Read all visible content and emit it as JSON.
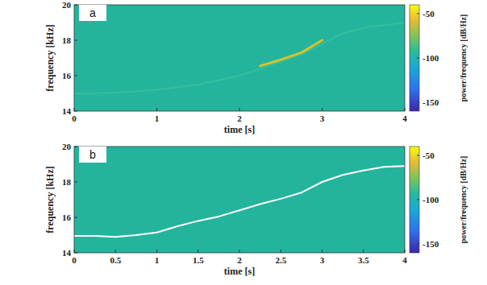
{
  "chart_data": [
    {
      "type": "line",
      "panel_label": "a",
      "xlabel": "time [s]",
      "ylabel": "frequency [kHz]",
      "x": [
        0,
        0.25,
        0.5,
        0.75,
        1,
        1.25,
        1.5,
        1.75,
        2,
        2.25,
        2.5,
        2.75,
        3,
        3.25,
        3.5,
        3.75,
        4
      ],
      "series": [
        {
          "color": "#3fc49a",
          "values": [
            15.0,
            15.0,
            15.05,
            15.1,
            15.2,
            15.35,
            15.5,
            15.75,
            16.0,
            16.4,
            16.8,
            17.2,
            17.8,
            18.4,
            18.7,
            18.85,
            19.0
          ]
        },
        {
          "color": "#d8c22a",
          "values": [
            null,
            null,
            null,
            null,
            null,
            null,
            null,
            null,
            null,
            16.55,
            16.9,
            17.3,
            18.0,
            null,
            null,
            null,
            null
          ]
        }
      ],
      "xlim": [
        0,
        4
      ],
      "xticks": [
        0,
        1,
        2,
        3,
        4
      ],
      "ylim": [
        14,
        20
      ],
      "yticks": [
        14,
        16,
        18,
        20
      ],
      "colorbar": {
        "label": "power/frequency [dB/Hz]",
        "range": [
          -160,
          -40
        ],
        "ticks": [
          -50,
          -100,
          -150
        ]
      }
    },
    {
      "type": "line",
      "panel_label": "b",
      "xlabel": "time [s]",
      "ylabel": "frequency [kHz]",
      "x": [
        0,
        0.25,
        0.5,
        0.75,
        1,
        1.25,
        1.5,
        1.75,
        2,
        2.25,
        2.5,
        2.75,
        3,
        3.25,
        3.5,
        3.75,
        4
      ],
      "series": [
        {
          "color": "#ffffff",
          "values": [
            14.95,
            14.95,
            14.9,
            15.0,
            15.15,
            15.5,
            15.8,
            16.05,
            16.4,
            16.75,
            17.05,
            17.4,
            18.0,
            18.4,
            18.65,
            18.85,
            18.9
          ]
        }
      ],
      "xlim": [
        0,
        4
      ],
      "xticks": [
        0,
        0.5,
        1,
        1.5,
        2,
        2.5,
        3,
        3.5,
        4
      ],
      "ylim": [
        14,
        20
      ],
      "yticks": [
        14,
        16,
        18,
        20
      ],
      "colorbar": {
        "label": "power/frequency [dB/Hz]",
        "range": [
          -160,
          -40
        ],
        "ticks": [
          -50,
          -100,
          -150
        ]
      }
    }
  ]
}
